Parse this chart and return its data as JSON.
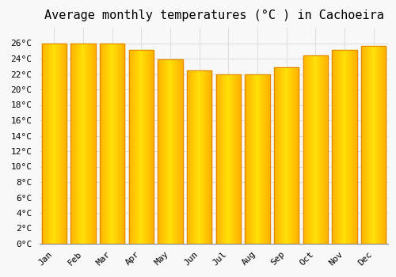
{
  "title": "Average monthly temperatures (°C ) in Cachoeira",
  "months": [
    "Jan",
    "Feb",
    "Mar",
    "Apr",
    "May",
    "Jun",
    "Jul",
    "Aug",
    "Sep",
    "Oct",
    "Nov",
    "Dec"
  ],
  "values": [
    26.0,
    26.0,
    25.9,
    25.1,
    23.9,
    22.5,
    21.9,
    21.9,
    22.9,
    24.4,
    25.1,
    25.6
  ],
  "bar_color": "#FFA800",
  "bar_edge_color": "#E08800",
  "ylim": [
    0,
    28
  ],
  "ytick_step": 2,
  "background_color": "#f8f8f8",
  "grid_color": "#e0e0e0",
  "title_fontsize": 11,
  "tick_fontsize": 8,
  "font_family": "monospace",
  "bar_width": 0.85
}
